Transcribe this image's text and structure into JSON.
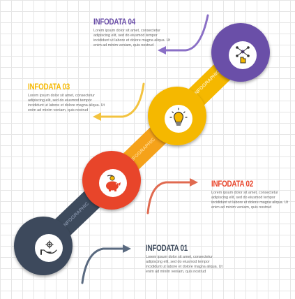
{
  "steps": [
    {
      "heading": "INFODATA 01",
      "body": "Lorem ipsum dolor sit amet, consectetur adipiscing elit, sed do eiusmod tempor incididunt ut labore et dolore magna aliqua. Ut enim ad minim veniam, quis nostrud",
      "band_label": "INFOGRAPHIC",
      "icon": "hand-gear-icon",
      "color": "#3d4a5c",
      "accent": "#5a6a80"
    },
    {
      "heading": "INFODATA 02",
      "body": "Lorem ipsum dolor sit amet, consectetur adipiscing elit, sed do eiusmod tempor incididunt ut labore et dolore magna aliqua. Ut enim ad minim veniam, quis nostrud",
      "band_label": "INFOGRAPHIC",
      "icon": "piggy-bank-coin-icon",
      "color": "#e8442a",
      "accent": "#e06a50"
    },
    {
      "heading": "INFODATA 03",
      "body": "Lorem ipsum dolor sit amet, consectetur adipiscing elit, sed do eiusmod tempor incididunt ut labore et dolore magna aliqua. Ut enim ad minim veniam, quis nostrud",
      "band_label": "INFOGRAPHIC",
      "icon": "lightbulb-icon",
      "color": "#f5b800",
      "accent": "#f3c33f"
    },
    {
      "heading": "INFODATA 04",
      "body": "Lorem ipsum dolor sit amet, consectetur adipiscing elit, sed do eiusmod tempor incididunt ut labore et dolore magna aliqua. Ut enim ad minim veniam, quis nostrud",
      "band_label": "INFOGRAPHIC",
      "icon": "hand-network-icon",
      "color": "#6b4fa8",
      "accent": "#8a6fc6"
    }
  ]
}
